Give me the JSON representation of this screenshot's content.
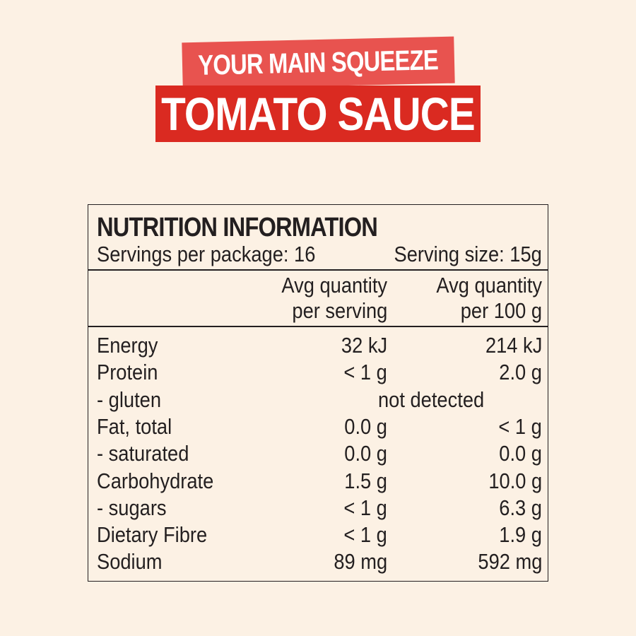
{
  "header": {
    "tagline": "YOUR MAIN SQUEEZE",
    "product": "TOMATO SAUCE"
  },
  "colors": {
    "background": "#fcf1e4",
    "tagline_bg": "#e8534f",
    "product_bg": "#da2a21",
    "text": "#231f20"
  },
  "nutrition": {
    "title": "NUTRITION INFORMATION",
    "servings_per_package": "Servings per package: 16",
    "serving_size": "Serving size: 15g",
    "col1_header": [
      "Avg quantity",
      "per serving"
    ],
    "col2_header": [
      "Avg quantity",
      "per 100 g"
    ],
    "rows": [
      {
        "label": "Energy",
        "per_serving": "32 kJ",
        "per_100g": "214 kJ"
      },
      {
        "label": "Protein",
        "per_serving": "< 1 g",
        "per_100g": "2.0 g"
      },
      {
        "label": "- gluten",
        "combined": "not detected"
      },
      {
        "label": "Fat, total",
        "per_serving": "0.0 g",
        "per_100g": "< 1 g"
      },
      {
        "label": "- saturated",
        "per_serving": "0.0 g",
        "per_100g": "0.0 g"
      },
      {
        "label": "Carbohydrate",
        "per_serving": "1.5 g",
        "per_100g": "10.0 g"
      },
      {
        "label": "- sugars",
        "per_serving": "< 1 g",
        "per_100g": "6.3 g"
      },
      {
        "label": "Dietary Fibre",
        "per_serving": "< 1 g",
        "per_100g": "1.9 g"
      },
      {
        "label": "Sodium",
        "per_serving": "89 mg",
        "per_100g": "592 mg"
      }
    ]
  }
}
